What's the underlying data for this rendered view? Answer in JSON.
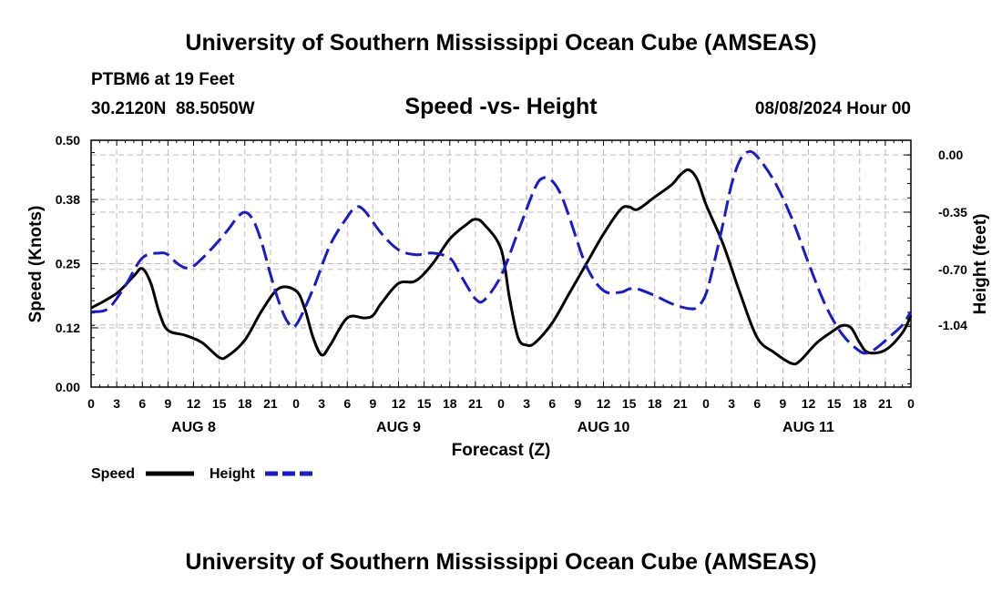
{
  "page": {
    "main_title": "University of Southern Mississippi Ocean Cube (AMSEAS)",
    "station": "PTBM6 at 19 Feet",
    "coords": "30.2120N  88.5050W",
    "subtitle": "Speed -vs- Height",
    "date": "08/08/2024 Hour 00",
    "footer_title": "University of Southern Mississippi Ocean Cube (AMSEAS)"
  },
  "chart_data": {
    "type": "line",
    "title": "Speed -vs- Height",
    "xlabel": "Forecast (Z)",
    "ylabel_left": "Speed (Knots)",
    "ylabel_right": "Height (feet)",
    "x_range_hours": [
      0,
      96
    ],
    "x_tick_hours": [
      0,
      3,
      6,
      9,
      12,
      15,
      18,
      21,
      24,
      27,
      30,
      33,
      36,
      39,
      42,
      45,
      48,
      51,
      54,
      57,
      60,
      63,
      66,
      69,
      72,
      75,
      78,
      81,
      84,
      87,
      90,
      93,
      96
    ],
    "x_tick_labels": [
      "0",
      "3",
      "6",
      "9",
      "12",
      "15",
      "18",
      "21",
      "0",
      "3",
      "6",
      "9",
      "12",
      "15",
      "18",
      "21",
      "0",
      "3",
      "6",
      "9",
      "12",
      "15",
      "18",
      "21",
      "0",
      "3",
      "6",
      "9",
      "12",
      "15",
      "18",
      "21",
      "0"
    ],
    "day_labels": [
      {
        "hour": 12,
        "label": "AUG 8"
      },
      {
        "hour": 36,
        "label": "AUG 9"
      },
      {
        "hour": 60,
        "label": "AUG 10"
      },
      {
        "hour": 84,
        "label": "AUG 11"
      }
    ],
    "left_axis": {
      "min": 0.0,
      "max": 0.5,
      "ticks": [
        0.0,
        0.12,
        0.25,
        0.38,
        0.5
      ],
      "tick_labels": [
        "0.00",
        "0.12",
        "0.25",
        "0.38",
        "0.50"
      ]
    },
    "right_axis": {
      "min": -1.42,
      "max": 0.09,
      "ticks": [
        0.0,
        -0.35,
        -0.7,
        -1.04
      ],
      "tick_labels": [
        "0.00",
        "-0.35",
        "-0.70",
        "-1.04"
      ]
    },
    "grid": true,
    "legend": [
      {
        "label": "Speed",
        "color": "#000000",
        "style": "solid"
      },
      {
        "label": "Height",
        "color": "#1a1acc",
        "style": "dashed"
      }
    ],
    "series": [
      {
        "name": "Speed",
        "axis": "left",
        "color": "#000000",
        "dash": false,
        "points": [
          [
            0,
            0.16
          ],
          [
            3,
            0.19
          ],
          [
            5,
            0.225
          ],
          [
            6,
            0.24
          ],
          [
            7,
            0.21
          ],
          [
            8,
            0.15
          ],
          [
            9,
            0.115
          ],
          [
            11,
            0.105
          ],
          [
            13,
            0.09
          ],
          [
            15,
            0.06
          ],
          [
            16,
            0.063
          ],
          [
            18,
            0.095
          ],
          [
            20,
            0.155
          ],
          [
            22,
            0.2
          ],
          [
            24,
            0.195
          ],
          [
            25,
            0.16
          ],
          [
            26,
            0.1
          ],
          [
            27,
            0.065
          ],
          [
            28,
            0.085
          ],
          [
            30,
            0.14
          ],
          [
            32,
            0.14
          ],
          [
            33,
            0.145
          ],
          [
            34,
            0.17
          ],
          [
            36,
            0.21
          ],
          [
            38,
            0.215
          ],
          [
            40,
            0.25
          ],
          [
            42,
            0.3
          ],
          [
            44,
            0.33
          ],
          [
            45,
            0.34
          ],
          [
            46,
            0.33
          ],
          [
            48,
            0.28
          ],
          [
            49,
            0.18
          ],
          [
            50,
            0.1
          ],
          [
            51,
            0.085
          ],
          [
            52,
            0.09
          ],
          [
            54,
            0.13
          ],
          [
            56,
            0.19
          ],
          [
            58,
            0.25
          ],
          [
            60,
            0.31
          ],
          [
            62,
            0.36
          ],
          [
            63,
            0.365
          ],
          [
            64,
            0.36
          ],
          [
            66,
            0.385
          ],
          [
            68,
            0.41
          ],
          [
            69,
            0.43
          ],
          [
            70,
            0.44
          ],
          [
            71,
            0.42
          ],
          [
            72,
            0.37
          ],
          [
            74,
            0.29
          ],
          [
            76,
            0.19
          ],
          [
            78,
            0.1
          ],
          [
            80,
            0.07
          ],
          [
            82,
            0.048
          ],
          [
            83,
            0.053
          ],
          [
            85,
            0.09
          ],
          [
            87,
            0.115
          ],
          [
            88,
            0.125
          ],
          [
            89,
            0.12
          ],
          [
            90,
            0.09
          ],
          [
            91,
            0.07
          ],
          [
            93,
            0.075
          ],
          [
            95,
            0.11
          ],
          [
            96,
            0.145
          ]
        ]
      },
      {
        "name": "Height",
        "axis": "right",
        "color": "#1a1acc",
        "dash": true,
        "points": [
          [
            0,
            -0.96
          ],
          [
            2,
            -0.94
          ],
          [
            4,
            -0.8
          ],
          [
            6,
            -0.63
          ],
          [
            8,
            -0.6
          ],
          [
            9,
            -0.61
          ],
          [
            10,
            -0.66
          ],
          [
            11,
            -0.69
          ],
          [
            12,
            -0.68
          ],
          [
            14,
            -0.58
          ],
          [
            16,
            -0.46
          ],
          [
            17,
            -0.39
          ],
          [
            18,
            -0.35
          ],
          [
            19,
            -0.4
          ],
          [
            20,
            -0.54
          ],
          [
            21,
            -0.73
          ],
          [
            22,
            -0.9
          ],
          [
            23,
            -1.02
          ],
          [
            24,
            -1.04
          ],
          [
            26,
            -0.82
          ],
          [
            28,
            -0.55
          ],
          [
            30,
            -0.38
          ],
          [
            31,
            -0.32
          ],
          [
            32,
            -0.34
          ],
          [
            34,
            -0.48
          ],
          [
            36,
            -0.58
          ],
          [
            38,
            -0.61
          ],
          [
            40,
            -0.6
          ],
          [
            42,
            -0.63
          ],
          [
            43,
            -0.71
          ],
          [
            44,
            -0.8
          ],
          [
            45,
            -0.88
          ],
          [
            46,
            -0.89
          ],
          [
            48,
            -0.74
          ],
          [
            50,
            -0.47
          ],
          [
            52,
            -0.2
          ],
          [
            53,
            -0.14
          ],
          [
            54,
            -0.16
          ],
          [
            55,
            -0.24
          ],
          [
            56,
            -0.38
          ],
          [
            58,
            -0.68
          ],
          [
            60,
            -0.83
          ],
          [
            62,
            -0.84
          ],
          [
            63,
            -0.82
          ],
          [
            64,
            -0.82
          ],
          [
            66,
            -0.86
          ],
          [
            68,
            -0.91
          ],
          [
            70,
            -0.94
          ],
          [
            71,
            -0.93
          ],
          [
            72,
            -0.85
          ],
          [
            73,
            -0.65
          ],
          [
            74,
            -0.42
          ],
          [
            75,
            -0.18
          ],
          [
            76,
            -0.03
          ],
          [
            77,
            0.02
          ],
          [
            78,
            -0.01
          ],
          [
            80,
            -0.16
          ],
          [
            82,
            -0.38
          ],
          [
            84,
            -0.66
          ],
          [
            86,
            -0.92
          ],
          [
            88,
            -1.1
          ],
          [
            90,
            -1.2
          ],
          [
            91,
            -1.21
          ],
          [
            92,
            -1.18
          ],
          [
            94,
            -1.09
          ],
          [
            95,
            -1.04
          ],
          [
            96,
            -0.96
          ]
        ]
      }
    ]
  }
}
